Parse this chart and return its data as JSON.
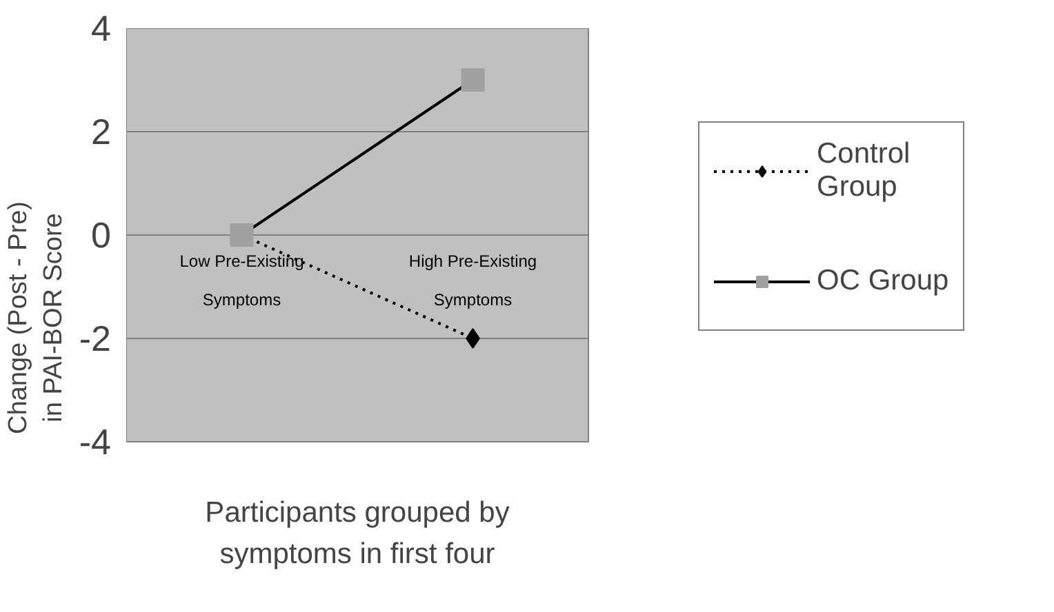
{
  "chart_data": {
    "type": "line",
    "xlabel": "Participants grouped by\nsymptoms in first four",
    "ylabel": "Change (Post - Pre)\nin PAI-BOR Score",
    "categories": [
      "Low Pre-Existing\nSymptoms",
      "High Pre-Existing\nSymptoms"
    ],
    "series": [
      {
        "name": "Control\nGroup",
        "color": "#000000",
        "values": [
          0,
          -2
        ],
        "marker": "diamond",
        "line_style": "dotted"
      },
      {
        "name": "OC Group",
        "color": "#000000",
        "values": [
          0,
          3
        ],
        "marker": "square",
        "line_style": "solid"
      }
    ],
    "ylim": [
      -4,
      4
    ],
    "yticks": [
      -4,
      -2,
      0,
      2,
      4
    ],
    "grid": "y",
    "legend": "right"
  }
}
